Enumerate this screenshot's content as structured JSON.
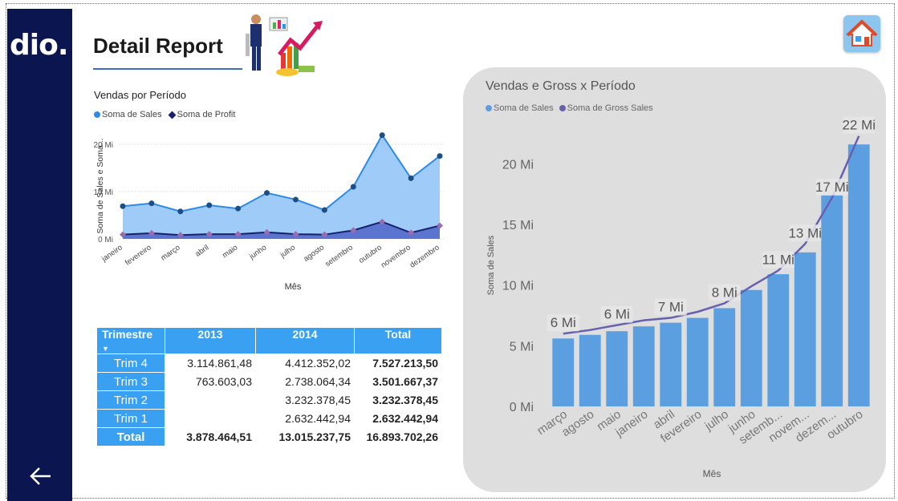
{
  "logo_text": "dio.",
  "header": {
    "title": "Detail Report"
  },
  "colors": {
    "sidebar": "#0b1550",
    "sales": "#2e8ae6",
    "sales_fill": "#9ecbf7",
    "profit": "#17226b",
    "profit_marker": "#9b6bb0",
    "bar": "#5b9fe0",
    "gross_line": "#6760b0",
    "table_header": "#3aa0f2"
  },
  "icons": {
    "back": "arrow-left-icon",
    "home": "home-icon"
  },
  "chart_data": [
    {
      "type": "area",
      "title": "Vendas por Período",
      "xlabel": "Mês",
      "ylabel": "Soma de Sales e Soma...",
      "ylim": [
        0,
        22
      ],
      "yticks": [
        "0 Mi",
        "10 Mi",
        "20 Mi"
      ],
      "legend_position": "top-left",
      "categories": [
        "janeiro",
        "fevereiro",
        "março",
        "abril",
        "maio",
        "junho",
        "julho",
        "agosto",
        "setembro",
        "outubro",
        "novembro",
        "dezembro"
      ],
      "series": [
        {
          "name": "Soma de  Sales",
          "values": [
            6.9,
            7.5,
            5.8,
            7.1,
            6.4,
            9.7,
            8.3,
            6.1,
            11.0,
            21.9,
            12.8,
            17.5
          ]
        },
        {
          "name": "Soma de Profit",
          "values": [
            0.9,
            1.2,
            0.8,
            1.0,
            1.0,
            1.4,
            1.0,
            0.9,
            1.8,
            3.6,
            1.3,
            2.8
          ]
        }
      ]
    },
    {
      "type": "bar",
      "title": "Vendas e Gross x Período",
      "xlabel": "Mês",
      "ylabel": "Soma de Sales",
      "ylim": [
        0,
        23
      ],
      "yticks": [
        "0 Mi",
        "5 Mi",
        "10 Mi",
        "15 Mi",
        "20 Mi"
      ],
      "legend_position": "top-left",
      "categories": [
        "março",
        "agosto",
        "maio",
        "janeiro",
        "abril",
        "fevereiro",
        "julho",
        "junho",
        "setemb...",
        "novem...",
        "dezem...",
        "outubro"
      ],
      "series": [
        {
          "name": "Soma de  Sales",
          "values": [
            5.6,
            5.9,
            6.2,
            6.6,
            6.9,
            7.3,
            8.1,
            9.6,
            10.9,
            12.7,
            17.4,
            21.6
          ]
        },
        {
          "name": "Soma de Gross Sales",
          "values": [
            6.0,
            6.3,
            6.7,
            7.1,
            7.3,
            7.8,
            8.5,
            9.9,
            11.2,
            13.4,
            17.2,
            22.3
          ]
        }
      ],
      "data_labels": [
        "6 Mi",
        "6 Mi",
        "7 Mi",
        "8 Mi",
        "11 Mi",
        "13 Mi",
        "17 Mi",
        "22 Mi"
      ]
    }
  ],
  "table": {
    "headers": [
      "Trimestre",
      "2013",
      "2014",
      "Total"
    ],
    "rows": [
      {
        "label": "Trim 4",
        "c2013": "3.114.861,48",
        "c2014": "4.412.352,02",
        "total": "7.527.213,50"
      },
      {
        "label": "Trim 3",
        "c2013": "763.603,03",
        "c2014": "2.738.064,34",
        "total": "3.501.667,37"
      },
      {
        "label": "Trim 2",
        "c2013": "",
        "c2014": "3.232.378,45",
        "total": "3.232.378,45"
      },
      {
        "label": "Trim 1",
        "c2013": "",
        "c2014": "2.632.442,94",
        "total": "2.632.442,94"
      }
    ],
    "total_row": {
      "label": "Total",
      "c2013": "3.878.464,51",
      "c2014": "13.015.237,75",
      "total": "16.893.702,26"
    }
  }
}
